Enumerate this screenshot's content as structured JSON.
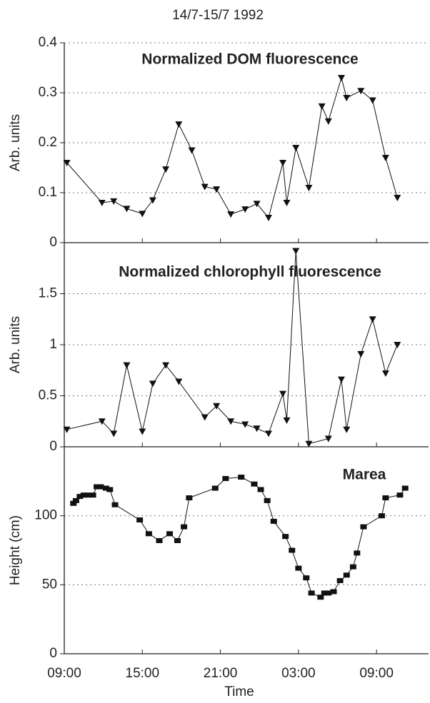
{
  "title": "14/7-15/7 1992",
  "chart_data": [
    {
      "type": "line",
      "title": "Normalized DOM fluorescence",
      "ylabel": "Arb. units",
      "marker": "triangle-down",
      "color": "#111111",
      "x": [
        0.2,
        2.9,
        3.8,
        4.8,
        6.0,
        6.8,
        7.8,
        8.8,
        9.8,
        10.8,
        11.7,
        12.8,
        13.9,
        14.8,
        15.7,
        16.8,
        17.1,
        17.8,
        18.8,
        19.8,
        20.3,
        21.3,
        21.7,
        22.8,
        23.7,
        24.7,
        25.6
      ],
      "values": [
        0.16,
        0.08,
        0.083,
        0.068,
        0.058,
        0.085,
        0.147,
        0.237,
        0.185,
        0.112,
        0.107,
        0.057,
        0.067,
        0.078,
        0.05,
        0.16,
        0.08,
        0.19,
        0.11,
        0.273,
        0.243,
        0.33,
        0.29,
        0.304,
        0.285,
        0.17,
        0.09
      ],
      "xlim": [
        0,
        28
      ],
      "ylim": [
        0,
        0.4
      ],
      "yticks": [
        0,
        0.1,
        0.2,
        0.3,
        0.4
      ],
      "grid": true
    },
    {
      "type": "line",
      "title": "Normalized chlorophyll fluorescence",
      "ylabel": "Arb. units",
      "marker": "triangle-down",
      "color": "#111111",
      "x": [
        0.2,
        2.9,
        3.8,
        4.8,
        6.0,
        6.8,
        7.8,
        8.8,
        10.8,
        11.7,
        12.8,
        13.9,
        14.8,
        15.7,
        16.8,
        17.1,
        17.8,
        18.8,
        20.3,
        21.3,
        21.7,
        22.8,
        23.7,
        24.7,
        25.6
      ],
      "values": [
        0.17,
        0.25,
        0.13,
        0.8,
        0.15,
        0.62,
        0.8,
        0.64,
        0.29,
        0.4,
        0.25,
        0.22,
        0.18,
        0.13,
        0.52,
        0.26,
        1.92,
        0.03,
        0.08,
        0.66,
        0.17,
        0.91,
        1.25,
        0.72,
        1.0
      ],
      "xlim": [
        0,
        28
      ],
      "ylim": [
        0,
        2
      ],
      "yticks": [
        0,
        0.5,
        1,
        1.5
      ],
      "grid": true
    },
    {
      "type": "line",
      "title": "Marea",
      "ylabel": "Height (cm)",
      "xlabel": "Time",
      "marker": "square",
      "color": "#111111",
      "x": [
        0.7,
        0.9,
        1.2,
        1.5,
        1.8,
        2.2,
        2.5,
        2.8,
        3.2,
        3.5,
        3.9,
        5.8,
        6.5,
        7.3,
        8.1,
        8.7,
        9.2,
        9.6,
        11.6,
        12.4,
        13.6,
        14.6,
        15.1,
        15.6,
        16.1,
        17.0,
        17.5,
        18.0,
        18.6,
        19.0,
        19.7,
        20.0,
        20.3,
        20.7,
        21.2,
        21.7,
        22.2,
        22.5,
        23.0,
        24.4,
        24.7,
        25.8,
        26.2
      ],
      "values": [
        109,
        111,
        114,
        115,
        115,
        115,
        121,
        121,
        120,
        119,
        108,
        97,
        87,
        82,
        87,
        82,
        92,
        113,
        120,
        127,
        128,
        123,
        119,
        111,
        96,
        85,
        75,
        62,
        55,
        44,
        41,
        44,
        44,
        45,
        53,
        57,
        63,
        73,
        92,
        100,
        113,
        115,
        120
      ],
      "xlim": [
        0,
        28
      ],
      "ylim": [
        0,
        150
      ],
      "yticks": [
        0,
        50,
        100
      ],
      "grid": true,
      "xticks": [
        {
          "value": 0,
          "label": "09:00"
        },
        {
          "value": 6,
          "label": "15:00"
        },
        {
          "value": 12,
          "label": "21:00"
        },
        {
          "value": 18,
          "label": "03:00"
        },
        {
          "value": 24,
          "label": "09:00"
        }
      ]
    }
  ]
}
